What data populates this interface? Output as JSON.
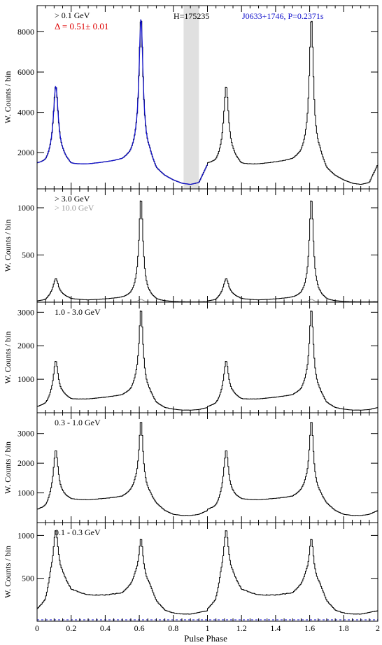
{
  "chart_data": [
    {
      "type": "line",
      "panel": "all",
      "energy_label": "> 0.1 GeV",
      "offpulse_label": "H=175235",
      "source_label": "J0633+1746, P=0.2371s",
      "delta_label": "Δ = 0.51± 0.01",
      "ylabel": "W. Counts / bin",
      "xlabel": "",
      "xlim": [
        0,
        2
      ],
      "ylim": [
        200,
        9300
      ],
      "yticks": [
        2000,
        4000,
        6000,
        8000
      ],
      "xticks": [
        0,
        0.2,
        0.4,
        0.6,
        0.8,
        1,
        1.2,
        1.4,
        1.6,
        1.8,
        2
      ],
      "offpulse_band": [
        0.86,
        0.95
      ],
      "peaks": [
        {
          "pos": 0.11,
          "height": 5300,
          "width": 0.022
        },
        {
          "pos": 0.61,
          "height": 8700,
          "width": 0.018
        }
      ],
      "profile_anchors": {
        "x": [
          0,
          0.05,
          0.08,
          0.15,
          0.2,
          0.3,
          0.4,
          0.5,
          0.55,
          0.58,
          0.66,
          0.7,
          0.75,
          0.8,
          0.85,
          0.9,
          0.95,
          1.0
        ],
        "y": [
          1400,
          1400,
          1600,
          1700,
          1350,
          1400,
          1500,
          1600,
          1800,
          2100,
          1800,
          1100,
          800,
          600,
          450,
          400,
          500,
          1400
        ]
      },
      "series": [
        {
          "name": "",
          "color": "#000000"
        },
        {
          "name": "",
          "color": "#1010cc"
        }
      ]
    },
    {
      "type": "line",
      "panel": "high",
      "energy_label": "> 3.0 GeV",
      "energy_label_2": "> 10.0 GeV",
      "ylabel": "W. Counts / bin",
      "xlabel": "",
      "xlim": [
        0,
        2
      ],
      "ylim": [
        0,
        1200
      ],
      "yticks": [
        500,
        1000
      ],
      "xticks": [
        0,
        0.2,
        0.4,
        0.6,
        0.8,
        1,
        1.2,
        1.4,
        1.6,
        1.8,
        2
      ],
      "peaks": [
        {
          "pos": 0.11,
          "height": 250,
          "width": 0.025
        },
        {
          "pos": 0.61,
          "height": 1100,
          "width": 0.018
        }
      ],
      "profile_anchors": {
        "x": [
          0,
          0.05,
          0.08,
          0.15,
          0.2,
          0.3,
          0.4,
          0.5,
          0.55,
          0.58,
          0.66,
          0.7,
          0.75,
          0.8,
          0.85,
          0.9,
          0.95,
          1.0
        ],
        "y": [
          5,
          10,
          40,
          60,
          30,
          20,
          30,
          40,
          55,
          90,
          50,
          15,
          5,
          3,
          2,
          2,
          3,
          5
        ]
      },
      "secondary_peak_height": 30,
      "series": [
        {
          "name": "",
          "color": "#000000"
        },
        {
          "name": "",
          "color": "#999999"
        }
      ]
    },
    {
      "type": "line",
      "panel": "mid",
      "energy_label": "1.0 - 3.0 GeV",
      "ylabel": "W. Counts / bin",
      "xlabel": "",
      "xlim": [
        0,
        2
      ],
      "ylim": [
        0,
        3300
      ],
      "yticks": [
        1000,
        2000,
        3000
      ],
      "xticks": [
        0,
        0.2,
        0.4,
        0.6,
        0.8,
        1,
        1.2,
        1.4,
        1.6,
        1.8,
        2
      ],
      "peaks": [
        {
          "pos": 0.11,
          "height": 1550,
          "width": 0.022
        },
        {
          "pos": 0.61,
          "height": 3100,
          "width": 0.018
        }
      ],
      "profile_anchors": {
        "x": [
          0,
          0.05,
          0.08,
          0.15,
          0.2,
          0.3,
          0.4,
          0.5,
          0.55,
          0.58,
          0.66,
          0.7,
          0.75,
          0.8,
          0.85,
          0.9,
          0.95,
          1.0
        ],
        "y": [
          150,
          200,
          350,
          500,
          380,
          400,
          450,
          500,
          600,
          800,
          550,
          250,
          130,
          90,
          70,
          70,
          90,
          150
        ]
      },
      "series": [
        {
          "name": "",
          "color": "#000000"
        }
      ]
    },
    {
      "type": "line",
      "panel": "low",
      "energy_label": "0.3 - 1.0 GeV",
      "ylabel": "W. Counts / bin",
      "xlabel": "",
      "xlim": [
        0,
        2
      ],
      "ylim": [
        0,
        3700
      ],
      "yticks": [
        1000,
        2000,
        3000
      ],
      "xticks": [
        0,
        0.2,
        0.4,
        0.6,
        0.8,
        1,
        1.2,
        1.4,
        1.6,
        1.8,
        2
      ],
      "peaks": [
        {
          "pos": 0.11,
          "height": 2450,
          "width": 0.022
        },
        {
          "pos": 0.61,
          "height": 3450,
          "width": 0.018
        }
      ],
      "profile_anchors": {
        "x": [
          0,
          0.05,
          0.08,
          0.15,
          0.2,
          0.3,
          0.4,
          0.5,
          0.55,
          0.58,
          0.66,
          0.7,
          0.75,
          0.8,
          0.85,
          0.9,
          0.95,
          1.0
        ],
        "y": [
          400,
          450,
          650,
          850,
          750,
          750,
          800,
          850,
          1000,
          1200,
          900,
          600,
          380,
          260,
          230,
          230,
          270,
          400
        ]
      },
      "series": [
        {
          "name": "",
          "color": "#000000"
        }
      ]
    },
    {
      "type": "line",
      "panel": "lowest",
      "energy_label": "0.1 - 0.3 GeV",
      "ylabel": "W. Counts / bin",
      "xlabel": "Pulse Phase",
      "xlim": [
        0,
        2
      ],
      "ylim": [
        0,
        1150
      ],
      "yticks": [
        500,
        1000
      ],
      "xticks": [
        0,
        0.2,
        0.4,
        0.6,
        0.8,
        1,
        1.2,
        1.4,
        1.6,
        1.8,
        2
      ],
      "xticklabels": [
        "0",
        "0.2",
        "0.4",
        "0.6",
        "0.8",
        "1",
        "1.2",
        "1.4",
        "1.6",
        "1.8",
        "2"
      ],
      "peaks": [
        {
          "pos": 0.11,
          "height": 1070,
          "width": 0.022
        },
        {
          "pos": 0.61,
          "height": 960,
          "width": 0.02
        }
      ],
      "profile_anchors": {
        "x": [
          0,
          0.05,
          0.08,
          0.15,
          0.2,
          0.3,
          0.4,
          0.5,
          0.55,
          0.58,
          0.66,
          0.7,
          0.75,
          0.8,
          0.85,
          0.9,
          0.95,
          1.0
        ],
        "y": [
          120,
          200,
          450,
          500,
          350,
          300,
          300,
          320,
          400,
          500,
          400,
          220,
          120,
          90,
          80,
          80,
          100,
          120
        ]
      },
      "series": [
        {
          "name": "",
          "color": "#000000"
        },
        {
          "name": "",
          "color": "#1010cc"
        }
      ]
    }
  ]
}
